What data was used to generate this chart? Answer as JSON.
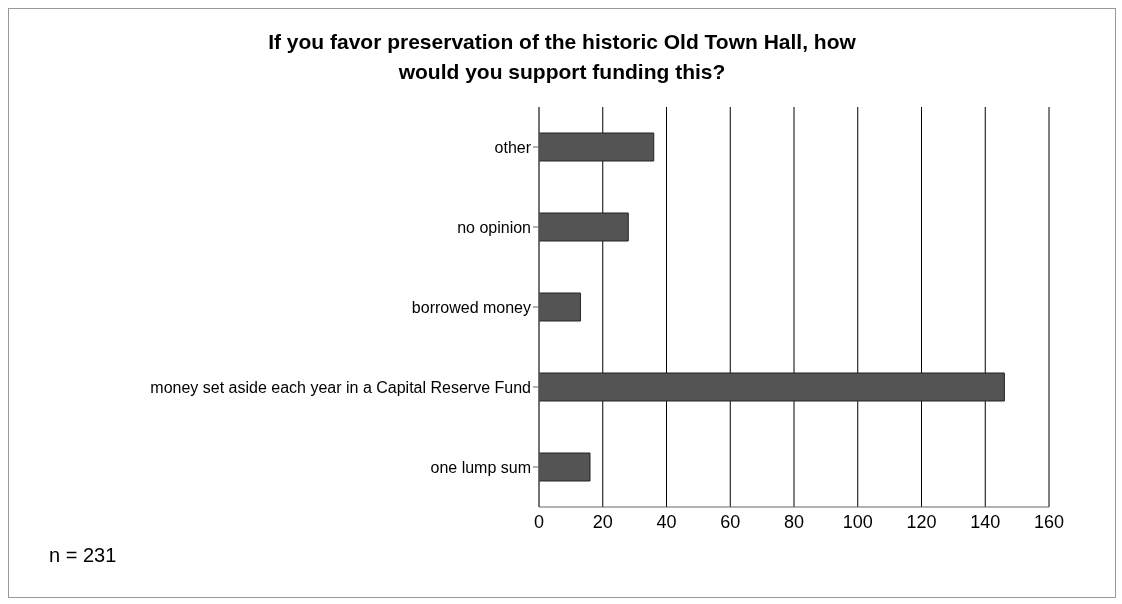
{
  "chart_data": {
    "type": "bar",
    "orientation": "horizontal",
    "title": "If you favor preservation of the historic Old Town Hall, how would you support funding this?",
    "categories": [
      "other",
      "no opinion",
      "borrowed money",
      "money set aside each year in a Capital Reserve Fund",
      "one lump sum"
    ],
    "values": [
      36,
      28,
      13,
      146,
      16
    ],
    "color": "#545454",
    "xlim": [
      0,
      160
    ],
    "xticks": [
      0,
      20,
      40,
      60,
      80,
      100,
      120,
      140,
      160
    ],
    "grid": "x",
    "annotations": [
      "n = 231"
    ]
  }
}
